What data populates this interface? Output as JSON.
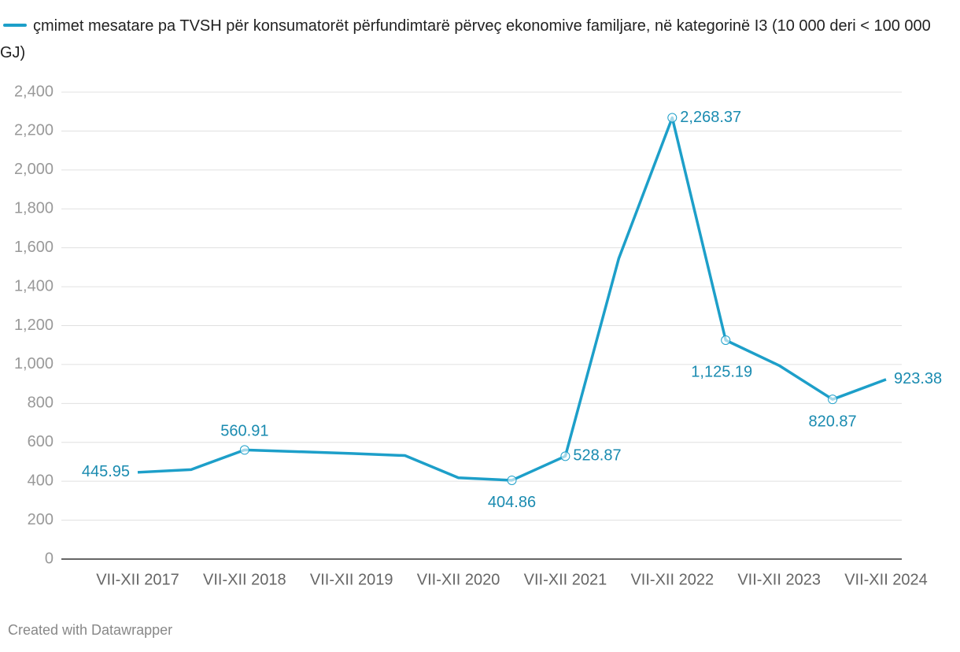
{
  "chart_data": {
    "type": "line",
    "legend_title": "çmimet mesatare pa TVSH për konsumatorët përfundimtarë përveç ekonomive familjare, në kategorinë I3 (10 000 deri < 100 000 GJ)",
    "categories": [
      "VII-XII 2017",
      null,
      "VII-XII 2018",
      null,
      "VII-XII 2019",
      null,
      "VII-XII 2020",
      null,
      "VII-XII 2021",
      null,
      "VII-XII 2022",
      null,
      "VII-XII 2023",
      null,
      "VII-XII 2024"
    ],
    "series": [
      {
        "name": "çmimet mesatare pa TVSH për konsumatorët përfundimtarë përveç ekonomive familjare, në kategorinë I3 (10 000 deri < 100 000 GJ)",
        "color": "#1d9fc9",
        "values": [
          445.95,
          460,
          560.91,
          552,
          543,
          532,
          418,
          404.86,
          528.87,
          1545,
          2268.37,
          1125.19,
          995,
          820.87,
          923.38
        ],
        "value_labels": [
          "445.95",
          null,
          "560.91",
          null,
          null,
          null,
          null,
          "404.86",
          "528.87",
          null,
          "2,268.37",
          "1,125.19",
          null,
          "820.87",
          "923.38"
        ]
      }
    ],
    "ylim": [
      0,
      2400
    ],
    "yticks": [
      0,
      200,
      400,
      600,
      800,
      {
        "value": 1000,
        "label": "1,000"
      },
      {
        "value": 1200,
        "label": "1,200"
      },
      {
        "value": 1400,
        "label": "1,400"
      },
      {
        "value": 1600,
        "label": "1,600"
      },
      {
        "value": 1800,
        "label": "1,800"
      },
      {
        "value": 2000,
        "label": "2,000"
      },
      {
        "value": 2200,
        "label": "2,200"
      },
      {
        "value": 2400,
        "label": "2,400"
      }
    ],
    "grid": true,
    "footer": "Created with Datawrapper"
  }
}
